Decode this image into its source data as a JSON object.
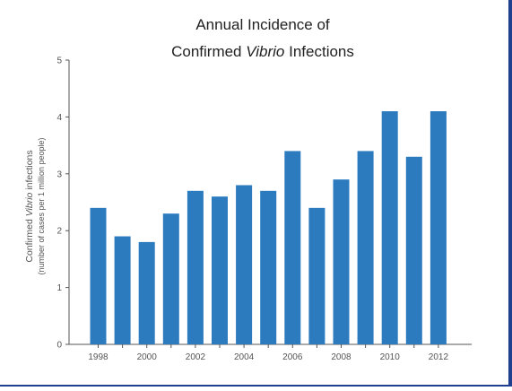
{
  "chart_data": {
    "type": "bar",
    "title_line1": "Annual Incidence of",
    "title_line2_pre": "Confirmed ",
    "title_line2_italic": "Vibrio",
    "title_line2_post": " Infections",
    "ylabel_pre": "Confirmed ",
    "ylabel_italic": "Vibrio",
    "ylabel_post": " infections",
    "ylabel_sub": "(number of cases per 1 million people)",
    "xlabel": "",
    "ylim": [
      0,
      5
    ],
    "yticks": [
      "0",
      "1",
      "2",
      "3",
      "4",
      "5"
    ],
    "categories": [
      "1998",
      "1999",
      "2000",
      "2001",
      "2002",
      "2003",
      "2004",
      "2005",
      "2006",
      "2007",
      "2008",
      "2009",
      "2010",
      "2011",
      "2012"
    ],
    "xtick_labels": [
      "1998",
      "",
      "2000",
      "",
      "2002",
      "",
      "2004",
      "",
      "2006",
      "",
      "2008",
      "",
      "2010",
      "",
      "2012"
    ],
    "values": [
      2.4,
      1.9,
      1.8,
      2.3,
      2.7,
      2.6,
      2.8,
      2.7,
      3.4,
      2.4,
      2.9,
      3.4,
      4.1,
      3.3,
      4.1
    ],
    "bar_color": "#2c7bbf",
    "grid": false,
    "legend": "none"
  }
}
